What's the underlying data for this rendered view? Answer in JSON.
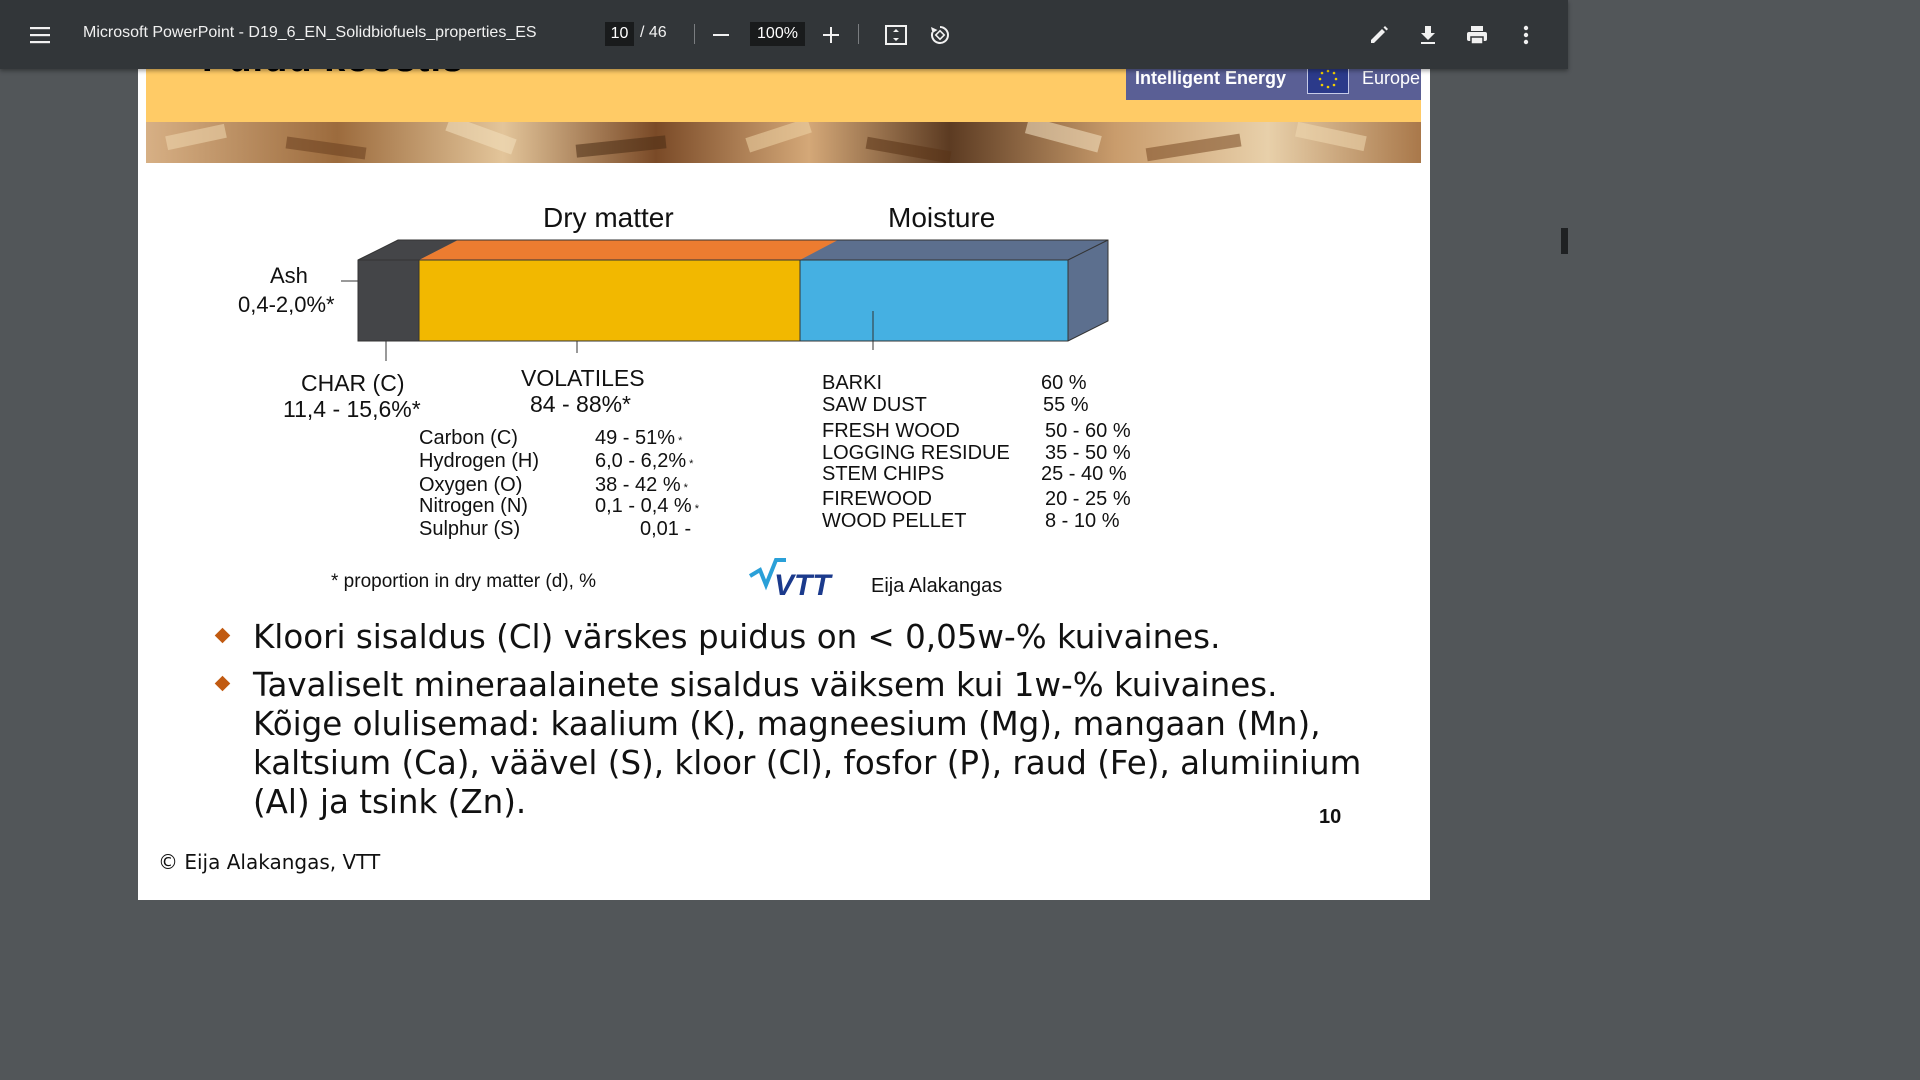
{
  "toolbar": {
    "title": "Microsoft PowerPoint - D19_6_EN_Solidbiofuels_properties_ES",
    "current_page": "10",
    "page_total": "/ 46",
    "zoom": "100%",
    "icons": [
      "menu-icon",
      "zoom-out-icon",
      "zoom-in-icon",
      "fit-page-icon",
      "rotate-icon",
      "edit-icon",
      "download-icon",
      "print-icon",
      "more-icon"
    ]
  },
  "slide": {
    "title": "Puidu koostis",
    "logo_text": "Intelligent Energy",
    "logo_region": "Europe",
    "diagram": {
      "dry_matter": "Dry matter",
      "moisture": "Moisture",
      "ash_label": "Ash",
      "ash_value": "0,4-2,0%*",
      "char_label": "CHAR (C)",
      "char_value": "11,4 - 15,6%*",
      "volatiles_label": "VOLATILES",
      "volatiles_value": "84 - 88%*",
      "elements": [
        {
          "name": "Carbon (C)",
          "value": "49 - 51%",
          "mark": "*"
        },
        {
          "name": "Hydrogen (H)",
          "value": "6,0 - 6,2%",
          "mark": "*"
        },
        {
          "name": "Oxygen (O)",
          "value": "38 - 42 %",
          "mark": "*"
        },
        {
          "name": "Nitrogen (N)",
          "value": "0,1 - 0,4 %",
          "mark": "*"
        },
        {
          "name": "Sulphur (S)",
          "value": "0,01 -",
          "mark": ""
        }
      ],
      "moisture_items": [
        {
          "name": "BARKI",
          "value": "60 %"
        },
        {
          "name": "SAW DUST",
          "value": "55 %"
        },
        {
          "name": "FRESH WOOD",
          "value": "50 - 60 %"
        },
        {
          "name": "LOGGING RESIDUE",
          "value": "35 - 50 %"
        },
        {
          "name": "STEM CHIPS",
          "value": "25 - 40 %"
        },
        {
          "name": "FIREWOOD",
          "value": "20 - 25 %"
        },
        {
          "name": "WOOD PELLET",
          "value": "8 - 10 %"
        }
      ],
      "footnote": "* proportion in dry matter (d), %",
      "author": "Eija Alakangas",
      "vtt_logo": "VTT"
    },
    "bullets": [
      "Kloori sisaldus (Cl) värskes puidus on < 0,05w-% kuivaines.",
      "Tavaliselt mineraalainete sisaldus väiksem kui 1w-% kuivaines. Kõige olulisemad: kaalium (K), magneesium (Mg), mangaan (Mn), kaltsium (Ca), väävel (S), kloor (Cl), fosfor (P), raud (Fe), alumiinium (Al) ja tsink (Zn)."
    ],
    "page_number": "10",
    "copyright": "© Eija Alakangas, VTT"
  },
  "colors": {
    "toolbar": "#323639",
    "banner": "#ffcb66",
    "char": "#444548",
    "volatiles": "#f2b800",
    "volatiles_top": "#ec7c30",
    "moisture": "#45b0e2",
    "moisture_side": "#5c6f8e",
    "bullet": "#c15a11"
  }
}
